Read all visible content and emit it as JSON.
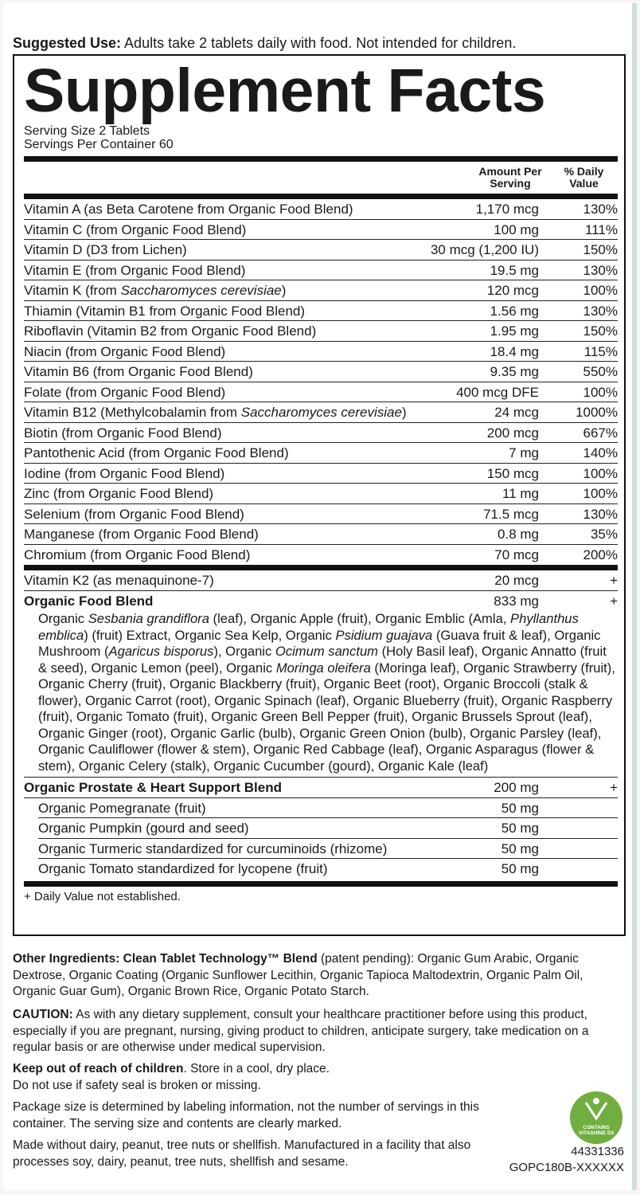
{
  "suggested_use": {
    "label": "Suggested Use:",
    "text": "Adults take 2 tablets daily with food. Not intended for children."
  },
  "facts": {
    "title": "Supplement Facts",
    "serving_size": "Serving Size 2 Tablets",
    "servings_per_container": "Servings Per Container 60",
    "header": {
      "amount": "Amount Per Serving",
      "daily_value": "% Daily Value"
    },
    "rows": [
      {
        "name": [
          "Vitamin A (as Beta Carotene from Organic Food Blend)"
        ],
        "amount": "1,170 mcg",
        "dv": "130%"
      },
      {
        "name": [
          "Vitamin C (from Organic Food Blend)"
        ],
        "amount": "100 mg",
        "dv": "111%"
      },
      {
        "name": [
          "Vitamin D (D3 from Lichen)"
        ],
        "amount": "30 mcg (1,200 IU)",
        "dv": "150%"
      },
      {
        "name": [
          "Vitamin E (from Organic Food Blend)"
        ],
        "amount": "19.5 mg",
        "dv": "130%"
      },
      {
        "name": [
          "Vitamin K (from ",
          "Saccharomyces cerevisiae",
          ")"
        ],
        "amount": "120 mcg",
        "dv": "100%"
      },
      {
        "name": [
          "Thiamin (Vitamin B1 from Organic Food Blend)"
        ],
        "amount": "1.56 mg",
        "dv": "130%"
      },
      {
        "name": [
          "Riboflavin (Vitamin B2 from Organic Food Blend)"
        ],
        "amount": "1.95 mg",
        "dv": "150%"
      },
      {
        "name": [
          "Niacin (from Organic Food Blend)"
        ],
        "amount": "18.4 mg",
        "dv": "115%"
      },
      {
        "name": [
          "Vitamin B6 (from Organic Food Blend)"
        ],
        "amount": "9.35 mg",
        "dv": "550%"
      },
      {
        "name": [
          "Folate (from Organic Food Blend)"
        ],
        "amount": "400 mcg DFE",
        "dv": "100%"
      },
      {
        "name": [
          "Vitamin B12 (Methylcobalamin from ",
          "Saccharomyces cerevisiae",
          ")"
        ],
        "amount": "24 mcg",
        "dv": "1000%"
      },
      {
        "name": [
          "Biotin (from Organic Food Blend)"
        ],
        "amount": "200 mcg",
        "dv": "667%"
      },
      {
        "name": [
          "Pantothenic Acid (from Organic Food Blend)"
        ],
        "amount": "7 mg",
        "dv": "140%"
      },
      {
        "name": [
          "Iodine (from Organic Food Blend)"
        ],
        "amount": "150 mcg",
        "dv": "100%"
      },
      {
        "name": [
          "Zinc (from Organic Food Blend)"
        ],
        "amount": "11 mg",
        "dv": "100%"
      },
      {
        "name": [
          "Selenium (from Organic Food Blend)"
        ],
        "amount": "71.5 mcg",
        "dv": "130%"
      },
      {
        "name": [
          "Manganese (from Organic Food Blend)"
        ],
        "amount": "0.8 mg",
        "dv": "35%"
      },
      {
        "name": [
          "Chromium (from Organic Food Blend)"
        ],
        "amount": "70 mcg",
        "dv": "200%"
      }
    ],
    "other_rows": [
      {
        "name": [
          "Vitamin K2 (as menaquinone-7)"
        ],
        "amount": "20 mcg",
        "dv": "+"
      },
      {
        "name": [
          "Organic Food Blend"
        ],
        "amount": "833 mg",
        "dv": "+",
        "bold": true
      }
    ],
    "blend_ingredients": [
      "Organic ",
      "Sesbania grandiflora",
      " (leaf), Organic Apple (fruit), Organic Emblic (Amla, ",
      "Phyllanthus emblica",
      ") (fruit) Extract, Organic Sea Kelp, Organic ",
      "Psidium guajava",
      " (Guava fruit & leaf), Organic Mushroom (",
      "Agaricus bisporus",
      "), Organic ",
      "Ocimum sanctum",
      " (Holy Basil leaf), Organic Annatto (fruit & seed), Organic Lemon (peel), Organic ",
      "Moringa oleifera",
      " (Moringa leaf), Organic Strawberry (fruit), Organic Cherry (fruit), Organic Blackberry (fruit), Organic Beet (root), Organic Broccoli (stalk & flower), Organic Carrot (root), Organic Spinach (leaf), Organic Blueberry (fruit), Organic Raspberry (fruit), Organic Tomato (fruit), Organic Green Bell Pepper (fruit), Organic Brussels Sprout (leaf), Organic Ginger (root), Organic Garlic (bulb), Organic Green Onion (bulb), Organic Parsley (leaf), Organic Cauliflower (flower & stem), Organic Red Cabbage (leaf), Organic Asparagus (flower & stem), Organic Celery (stalk), Organic Cucumber (gourd), Organic Kale (leaf)"
    ],
    "prostate_blend": {
      "name": [
        "Organic Prostate & Heart Support Blend"
      ],
      "amount": "200 mg",
      "dv": "+",
      "bold": true
    },
    "prostate_ingredients": [
      {
        "name": [
          "Organic Pomegranate (fruit)"
        ],
        "amount": "50 mg"
      },
      {
        "name": [
          "Organic Pumpkin (gourd and seed)"
        ],
        "amount": "50 mg"
      },
      {
        "name": [
          "Organic Turmeric standardized for curcuminoids (rhizome)"
        ],
        "amount": "50 mg"
      },
      {
        "name": [
          "Organic Tomato standardized for lycopene (fruit)"
        ],
        "amount": "50 mg"
      }
    ],
    "footnote": "+ Daily Value not established."
  },
  "other_ingredients": {
    "label": "Other Ingredients: Clean Tablet Technology™ Blend",
    "text": "(patent pending): Organic Gum Arabic, Organic Dextrose, Organic Coating (Organic Sunflower Lecithin, Organic Tapioca Maltodextrin, Organic Palm Oil, Organic Guar Gum), Organic Brown Rice, Organic Potato Starch."
  },
  "caution": {
    "label": "CAUTION:",
    "text": "As with any dietary supplement, consult your healthcare practitioner before using this product, especially if you are pregnant, nursing, giving product to children, anticipate surgery, take medication on a regular basis or are otherwise under medical supervision."
  },
  "storage": {
    "label": "Keep out of reach of children",
    "text": ". Store in a cool, dry place.",
    "note": "Do not use if safety seal is broken or missing."
  },
  "package_note": "Package size is determined by labeling information, not the number of servings in this container. The serving size and contents are clearly marked.",
  "allergen_note": "Made without dairy, peanut, tree nuts or shellfish. Manufactured in a facility that also processes soy, dairy, peanut, tree nuts, shellfish and sesame.",
  "badge": {
    "line1": "CONTAINS",
    "line2": "VITASHINE D3"
  },
  "codes": [
    "44331336",
    "GOPC180B-XXXXXX"
  ]
}
